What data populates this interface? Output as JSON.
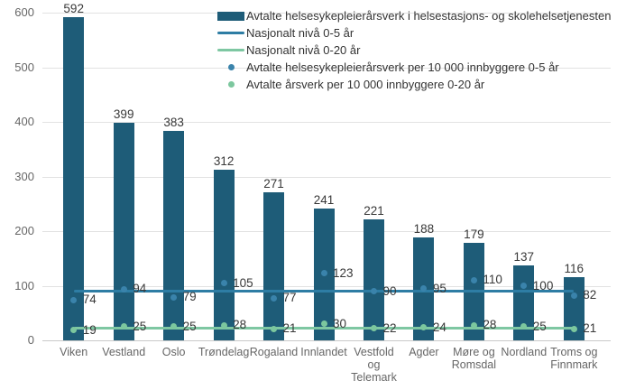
{
  "chart_data": {
    "type": "bar",
    "title": "",
    "xlabel": "",
    "ylabel": "",
    "categories": [
      "Viken",
      "Vestland",
      "Oslo",
      "Trøndelag",
      "Rogaland",
      "Innlandet",
      "Vestfold og Telemark",
      "Agder",
      "Møre og Romsdal",
      "Nordland",
      "Troms og Finnmark"
    ],
    "category_label_lines": [
      [
        "Viken"
      ],
      [
        "Vestland"
      ],
      [
        "Oslo"
      ],
      [
        "Trøndelag"
      ],
      [
        "Rogaland"
      ],
      [
        "Innlandet"
      ],
      [
        "Vestfold",
        "og",
        "Telemark"
      ],
      [
        "Agder"
      ],
      [
        "Møre og",
        "Romsdal"
      ],
      [
        "Nordland"
      ],
      [
        "Troms og",
        "Finnmark"
      ]
    ],
    "ylim": [
      0,
      600
    ],
    "yticks": [
      0,
      100,
      200,
      300,
      400,
      500,
      600
    ],
    "grid": true,
    "legend_position": "top-center",
    "series": [
      {
        "name": "Avtalte helsesykepleierårsverk i helsestasjons- og skolehelsetjenesten",
        "type": "bar",
        "color": "#1e5c78",
        "values": [
          592,
          399,
          383,
          312,
          271,
          241,
          221,
          188,
          179,
          137,
          116
        ]
      },
      {
        "name": "Nasjonalt nivå 0-5 år",
        "type": "hline",
        "color": "#2e7da4",
        "value": 90
      },
      {
        "name": "Nasjonalt nivå 0-20 år",
        "type": "hline",
        "color": "#7ec7a2",
        "value": 23
      },
      {
        "name": "Avtalte helsesykepleierårsverk per 10 000 innbyggere 0-5 år",
        "type": "scatter",
        "color": "#3a83ab",
        "values": [
          74,
          94,
          79,
          105,
          77,
          123,
          90,
          95,
          110,
          100,
          82
        ]
      },
      {
        "name": "Avtalte årsverk per 10 000 innbyggere 0-20 år",
        "type": "scatter",
        "color": "#7cc79e",
        "values": [
          19,
          25,
          25,
          28,
          21,
          30,
          22,
          24,
          28,
          25,
          21
        ]
      }
    ]
  },
  "colors": {
    "background": "#ffffff",
    "grid": "#e2e2e2",
    "axis_line": "#c9c9c9",
    "tick_label": "#666666",
    "data_label": "#383838",
    "legend_label": "#333333"
  }
}
